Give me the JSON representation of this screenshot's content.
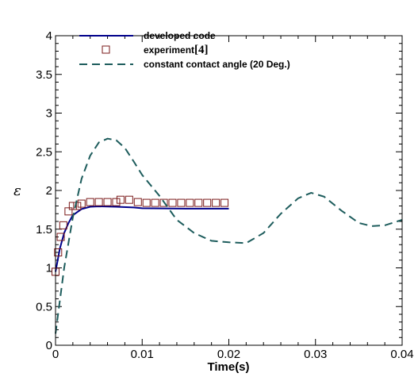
{
  "chart_data": {
    "type": "line",
    "xlabel": "Time(s)",
    "ylabel": "ε",
    "xlim": [
      0,
      0.04
    ],
    "ylim": [
      0,
      4
    ],
    "x_ticks": [
      "0",
      "0.01",
      "0.02",
      "0.03",
      "0.04"
    ],
    "y_ticks": [
      "0",
      "0.5",
      "1",
      "1.5",
      "2",
      "2.5",
      "3",
      "3.5",
      "4"
    ],
    "legend_position": "top-left",
    "series": [
      {
        "name": "developed code",
        "style": "solid-line",
        "color": "#00008b",
        "points": [
          [
            0,
            0.95
          ],
          [
            0.0005,
            1.25
          ],
          [
            0.001,
            1.45
          ],
          [
            0.0015,
            1.58
          ],
          [
            0.002,
            1.68
          ],
          [
            0.003,
            1.76
          ],
          [
            0.004,
            1.79
          ],
          [
            0.005,
            1.795
          ],
          [
            0.007,
            1.79
          ],
          [
            0.009,
            1.78
          ],
          [
            0.01,
            1.77
          ],
          [
            0.015,
            1.765
          ],
          [
            0.02,
            1.765
          ]
        ]
      },
      {
        "name": "experiment",
        "name_ref": "[4]",
        "style": "square-marker",
        "color": "#7a1a1a",
        "points": [
          [
            0.0,
            0.95
          ],
          [
            0.0003,
            1.2
          ],
          [
            0.0006,
            1.4
          ],
          [
            0.0009,
            1.55
          ],
          [
            0.0015,
            1.73
          ],
          [
            0.002,
            1.8
          ],
          [
            0.0025,
            1.8
          ],
          [
            0.003,
            1.83
          ],
          [
            0.004,
            1.85
          ],
          [
            0.005,
            1.85
          ],
          [
            0.006,
            1.85
          ],
          [
            0.007,
            1.85
          ],
          [
            0.0075,
            1.88
          ],
          [
            0.0085,
            1.88
          ],
          [
            0.0095,
            1.85
          ],
          [
            0.0105,
            1.84
          ],
          [
            0.0115,
            1.84
          ],
          [
            0.0125,
            1.84
          ],
          [
            0.0135,
            1.84
          ],
          [
            0.0145,
            1.84
          ],
          [
            0.0155,
            1.84
          ],
          [
            0.0165,
            1.84
          ],
          [
            0.0175,
            1.84
          ],
          [
            0.0185,
            1.84
          ],
          [
            0.0195,
            1.84
          ]
        ]
      },
      {
        "name": "constant contact angle (20 Deg.)",
        "style": "dashed-line",
        "color": "#1d5c5c",
        "points": [
          [
            0,
            0.15
          ],
          [
            0.001,
            1.0
          ],
          [
            0.002,
            1.65
          ],
          [
            0.003,
            2.15
          ],
          [
            0.004,
            2.45
          ],
          [
            0.005,
            2.62
          ],
          [
            0.006,
            2.67
          ],
          [
            0.007,
            2.65
          ],
          [
            0.008,
            2.55
          ],
          [
            0.009,
            2.38
          ],
          [
            0.01,
            2.2
          ],
          [
            0.012,
            1.93
          ],
          [
            0.014,
            1.62
          ],
          [
            0.016,
            1.45
          ],
          [
            0.018,
            1.35
          ],
          [
            0.02,
            1.33
          ],
          [
            0.022,
            1.32
          ],
          [
            0.024,
            1.45
          ],
          [
            0.026,
            1.7
          ],
          [
            0.028,
            1.9
          ],
          [
            0.0295,
            1.97
          ],
          [
            0.031,
            1.92
          ],
          [
            0.033,
            1.74
          ],
          [
            0.035,
            1.58
          ],
          [
            0.0365,
            1.54
          ],
          [
            0.038,
            1.55
          ],
          [
            0.04,
            1.62
          ]
        ]
      }
    ]
  }
}
